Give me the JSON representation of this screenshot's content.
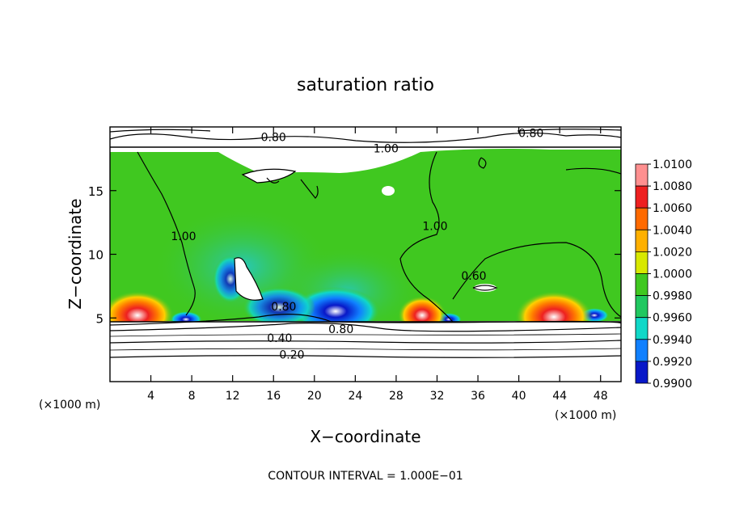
{
  "chart_data": {
    "type": "heatmap",
    "title": "saturation ratio",
    "xlabel": "X−coordinate",
    "ylabel": "Z−coordinate",
    "x_unit_label": "(×1000 m)",
    "z_unit_label": "(×1000 m)",
    "footer": "CONTOUR INTERVAL = 1.000E−01",
    "xlim": [
      0,
      50
    ],
    "zlim": [
      0,
      20
    ],
    "x_ticks": [
      4,
      8,
      12,
      16,
      20,
      24,
      28,
      32,
      36,
      40,
      44,
      48
    ],
    "z_ticks": [
      5,
      10,
      15
    ],
    "colorbar": {
      "levels": [
        "1.0100",
        "1.0080",
        "1.0060",
        "1.0040",
        "1.0020",
        "1.0000",
        "0.9980",
        "0.9960",
        "0.9940",
        "0.9920",
        "0.9900"
      ],
      "colors": [
        "#ff9090",
        "#ee2020",
        "#ff6a00",
        "#ffb000",
        "#d8e800",
        "#40c820",
        "#20c860",
        "#10d8c8",
        "#1080ff",
        "#0818c8",
        "#5020a0"
      ]
    },
    "contour_labels": [
      {
        "text": "0.80",
        "x": 16.0,
        "z": 18.9
      },
      {
        "text": "0.80",
        "x": 41.2,
        "z": 19.2
      },
      {
        "text": "1.00",
        "x": 27.0,
        "z": 18.0
      },
      {
        "text": "1.00",
        "x": 7.2,
        "z": 11.1
      },
      {
        "text": "1.00",
        "x": 31.8,
        "z": 11.9
      },
      {
        "text": "0.60",
        "x": 35.6,
        "z": 8.0
      },
      {
        "text": "0.80",
        "x": 17.0,
        "z": 5.6
      },
      {
        "text": "0.80",
        "x": 22.6,
        "z": 3.8
      },
      {
        "text": "0.40",
        "x": 16.6,
        "z": 3.1
      },
      {
        "text": "0.20",
        "x": 17.8,
        "z": 1.8
      }
    ],
    "grid": false,
    "legend": "right"
  }
}
